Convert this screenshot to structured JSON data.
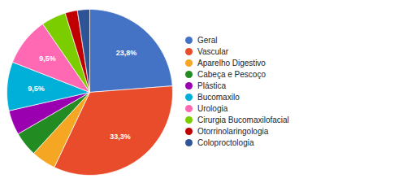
{
  "chart_data": {
    "type": "pie",
    "categories": [
      "Geral",
      "Vascular",
      "Aparelho Digestivo",
      "Cabeça e Pescoço",
      "Plástica",
      "Bucomaxilo",
      "Urologia",
      "Cirurgia Bucomaxilofacial",
      "Otorrinolaringologia",
      "Coloproctologia"
    ],
    "values": [
      23.8,
      33.3,
      4.8,
      4.8,
      4.8,
      9.5,
      9.5,
      4.8,
      2.4,
      2.4
    ],
    "value_labels": [
      "23,8%",
      "33,3%",
      null,
      null,
      null,
      "9,5%",
      "9,5%",
      null,
      null,
      null
    ],
    "colors": [
      "#4472C4",
      "#E84C2B",
      "#F5A623",
      "#228B22",
      "#9B00B0",
      "#00B0D8",
      "#FF69B4",
      "#7CCD00",
      "#C00000",
      "#2F5496"
    ],
    "data_labels": true,
    "legend": "right"
  }
}
